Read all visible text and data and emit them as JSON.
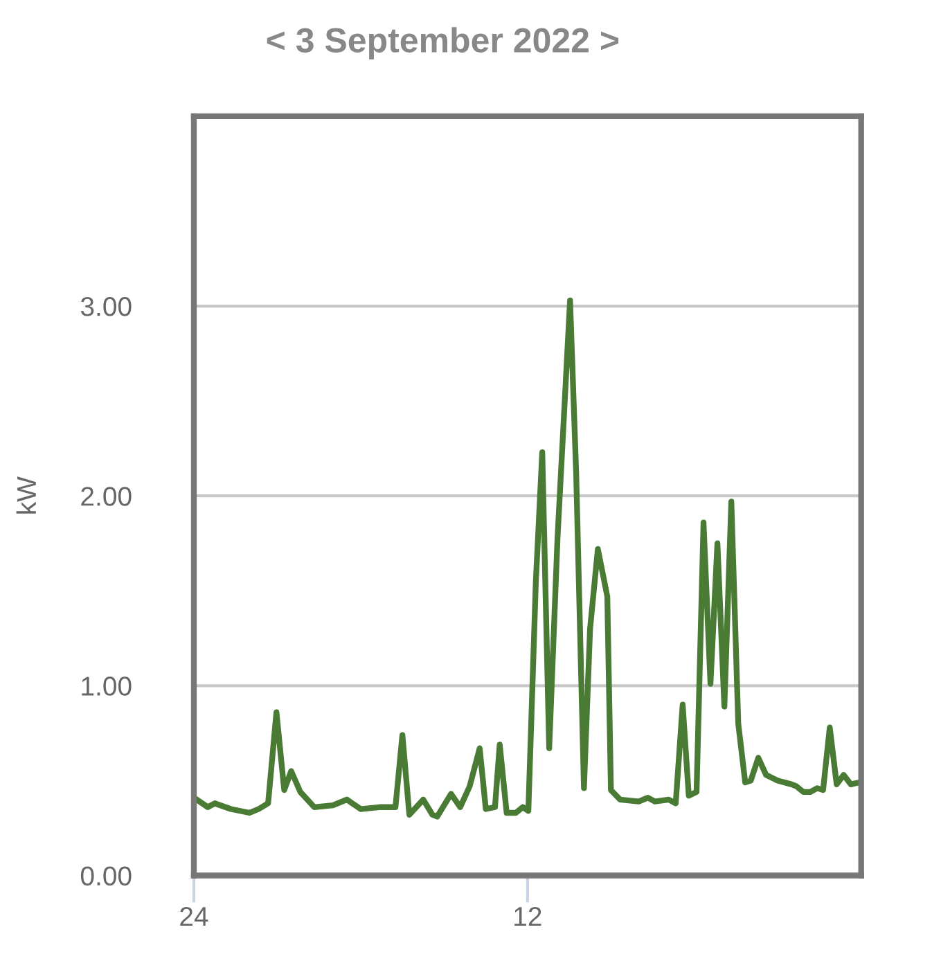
{
  "chart_data": {
    "type": "line",
    "title": "< 3 September 2022 >",
    "ylabel": "kW",
    "x": [
      23.9,
      23.5,
      23.25,
      22.67,
      22.0,
      21.67,
      21.33,
      21.03,
      20.75,
      20.5,
      20.17,
      19.67,
      19.0,
      18.5,
      18.0,
      17.33,
      16.75,
      16.5,
      16.25,
      15.75,
      15.42,
      15.25,
      14.75,
      14.42,
      14.08,
      13.72,
      13.5,
      13.17,
      13.0,
      12.75,
      12.42,
      12.17,
      11.97,
      11.7,
      11.47,
      11.22,
      10.92,
      10.47,
      10.25,
      9.97,
      9.75,
      9.47,
      9.13,
      9.0,
      8.67,
      8.0,
      7.67,
      7.42,
      6.92,
      6.67,
      6.42,
      6.2,
      5.92,
      5.67,
      5.42,
      5.17,
      4.92,
      4.67,
      4.42,
      4.17,
      3.97,
      3.7,
      3.42,
      3.0,
      2.5,
      2.33,
      2.08,
      1.83,
      1.58,
      1.37,
      1.13,
      0.88,
      0.63,
      0.37,
      0.08
    ],
    "series": [
      {
        "color": "#4a7b35",
        "values": [
          0.4,
          0.36,
          0.38,
          0.35,
          0.33,
          0.35,
          0.38,
          0.86,
          0.45,
          0.55,
          0.44,
          0.36,
          0.37,
          0.4,
          0.35,
          0.36,
          0.36,
          0.74,
          0.32,
          0.4,
          0.32,
          0.31,
          0.43,
          0.36,
          0.47,
          0.67,
          0.35,
          0.36,
          0.69,
          0.33,
          0.33,
          0.36,
          0.34,
          1.55,
          2.23,
          0.67,
          1.78,
          3.03,
          2.12,
          0.46,
          1.3,
          1.72,
          1.47,
          0.45,
          0.4,
          0.39,
          0.41,
          0.39,
          0.4,
          0.38,
          0.9,
          0.42,
          0.44,
          1.86,
          1.01,
          1.75,
          0.89,
          1.97,
          0.8,
          0.49,
          0.5,
          0.62,
          0.53,
          0.5,
          0.48,
          0.47,
          0.44,
          0.44,
          0.46,
          0.45,
          0.78,
          0.48,
          0.53,
          0.48,
          0.49
        ]
      }
    ],
    "xlim": [
      24,
      0
    ],
    "xticks": [
      24,
      12
    ],
    "ylim": [
      0,
      4
    ],
    "yticks": [
      {
        "value": 0,
        "label": "0.00"
      },
      {
        "value": 1,
        "label": "1.00"
      },
      {
        "value": 2,
        "label": "2.00"
      },
      {
        "value": 3,
        "label": "3.00"
      }
    ],
    "grid": "y",
    "legend": false,
    "marker": "none",
    "line_style": "solid"
  }
}
